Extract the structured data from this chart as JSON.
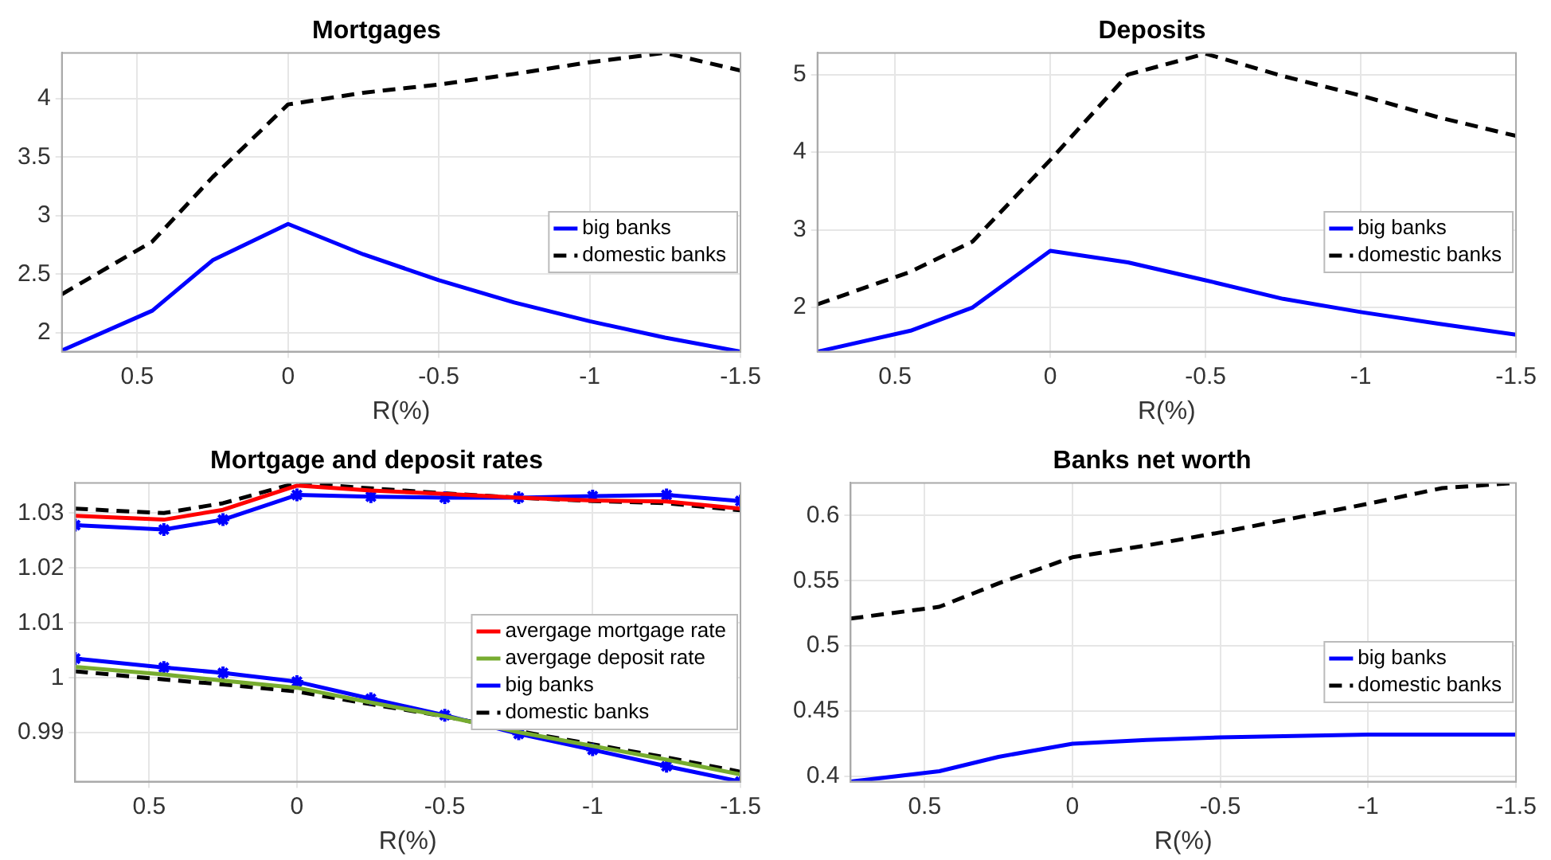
{
  "chart_data": [
    {
      "type": "line",
      "title": "Mortgages",
      "xlabel": "R(%)",
      "x": [
        0.75,
        0.45,
        0.25,
        0,
        -0.25,
        -0.5,
        -0.75,
        -1,
        -1.25,
        -1.5
      ],
      "xlim": [
        0.75,
        -1.5
      ],
      "xticks": [
        0.5,
        0,
        -0.5,
        -1,
        -1.5
      ],
      "ylim": [
        1.84,
        4.39
      ],
      "yticks": [
        2,
        2.5,
        3,
        3.5,
        4
      ],
      "grid": true,
      "legend": "right",
      "series": [
        {
          "name": "big banks",
          "color": "#0000ff",
          "values": [
            1.85,
            2.19,
            2.62,
            2.93,
            2.67,
            2.45,
            2.26,
            2.1,
            1.96,
            1.84
          ]
        },
        {
          "name": "domestic banks",
          "color": "#000000",
          "line_style": "dashed",
          "values": [
            2.33,
            2.78,
            3.33,
            3.95,
            4.05,
            4.12,
            4.21,
            4.31,
            4.39,
            4.24
          ]
        }
      ]
    },
    {
      "type": "line",
      "title": "Deposits",
      "xlabel": "R(%)",
      "x": [
        0.75,
        0.45,
        0.25,
        0,
        -0.25,
        -0.5,
        -0.75,
        -1,
        -1.25,
        -1.5
      ],
      "xlim": [
        0.75,
        -1.5
      ],
      "xticks": [
        0.5,
        0,
        -0.5,
        -1,
        -1.5
      ],
      "ylim": [
        1.43,
        5.28
      ],
      "yticks": [
        2,
        3,
        4,
        5
      ],
      "grid": true,
      "legend": "right",
      "series": [
        {
          "name": "big banks",
          "color": "#0000ff",
          "values": [
            1.43,
            1.7,
            2.0,
            2.73,
            2.58,
            2.35,
            2.11,
            1.94,
            1.79,
            1.65
          ]
        },
        {
          "name": "domestic banks",
          "color": "#000000",
          "line_style": "dashed",
          "values": [
            2.04,
            2.46,
            2.85,
            3.9,
            5.0,
            5.27,
            4.98,
            4.73,
            4.45,
            4.21
          ]
        }
      ]
    },
    {
      "type": "line",
      "title": "Mortgage and deposit rates",
      "xlabel": "R(%)",
      "x": [
        0.75,
        0.45,
        0.25,
        0,
        -0.25,
        -0.5,
        -0.75,
        -1,
        -1.25,
        -1.5
      ],
      "xlim": [
        0.75,
        -1.5
      ],
      "xticks": [
        0.5,
        0,
        -0.5,
        -1,
        -1.5
      ],
      "ylim": [
        0.9811,
        1.0355
      ],
      "yticks": [
        0.99,
        1,
        1.01,
        1.02,
        1.03
      ],
      "grid": true,
      "legend": "right",
      "series": [
        {
          "name": "avergage mortgage rate",
          "color": "#ff0000",
          "values": [
            1.0295,
            1.0288,
            1.0306,
            1.035,
            1.0341,
            1.0335,
            1.0328,
            1.0323,
            1.0321,
            1.0308
          ]
        },
        {
          "name": "avergage deposit rate",
          "color": "#77ac30",
          "values": [
            1.002,
            1.0006,
            0.9995,
            0.9982,
            0.9955,
            0.993,
            0.9901,
            0.9876,
            0.9851,
            0.9824
          ]
        },
        {
          "name": "big banks",
          "color": "#0000ff",
          "marker": "cross",
          "values": [
            1.0278,
            1.027,
            1.0288,
            1.0333,
            1.033,
            1.0328,
            1.0328,
            1.0331,
            1.0333,
            1.0322
          ]
        },
        {
          "color": "#0000ff",
          "marker": "cross",
          "values": [
            1.0035,
            1.0019,
            1.0009,
            0.9993,
            0.9962,
            0.9932,
            0.9898,
            0.9869,
            0.9839,
            0.9811
          ]
        },
        {
          "name": "domestic banks",
          "color": "#000000",
          "line_style": "dashed",
          "values": [
            1.0308,
            1.03,
            1.0318,
            1.0355,
            1.0345,
            1.0336,
            1.0328,
            1.0322,
            1.0318,
            1.0305
          ]
        },
        {
          "color": "#000000",
          "line_style": "dashed",
          "values": [
            1.0012,
            0.9997,
            0.9988,
            0.9975,
            0.9952,
            0.993,
            0.9903,
            0.9879,
            0.9855,
            0.9829
          ]
        }
      ]
    },
    {
      "type": "line",
      "title": "Banks net worth",
      "xlabel": "R(%)",
      "x": [
        0.75,
        0.45,
        0.25,
        0,
        -0.25,
        -0.5,
        -0.75,
        -1,
        -1.25,
        -1.5
      ],
      "xlim": [
        0.75,
        -1.5
      ],
      "xticks": [
        0.5,
        0,
        -0.5,
        -1,
        -1.5
      ],
      "ylim": [
        0.396,
        0.625
      ],
      "yticks": [
        0.4,
        0.45,
        0.5,
        0.55,
        0.6
      ],
      "grid": true,
      "legend": "right",
      "series": [
        {
          "name": "big banks",
          "color": "#0000ff",
          "values": [
            0.396,
            0.404,
            0.415,
            0.425,
            0.428,
            0.43,
            0.431,
            0.432,
            0.432,
            0.432
          ]
        },
        {
          "name": "domestic banks",
          "color": "#000000",
          "line_style": "dashed",
          "values": [
            0.521,
            0.53,
            0.548,
            0.568,
            0.577,
            0.587,
            0.598,
            0.609,
            0.621,
            0.625
          ]
        }
      ]
    }
  ]
}
